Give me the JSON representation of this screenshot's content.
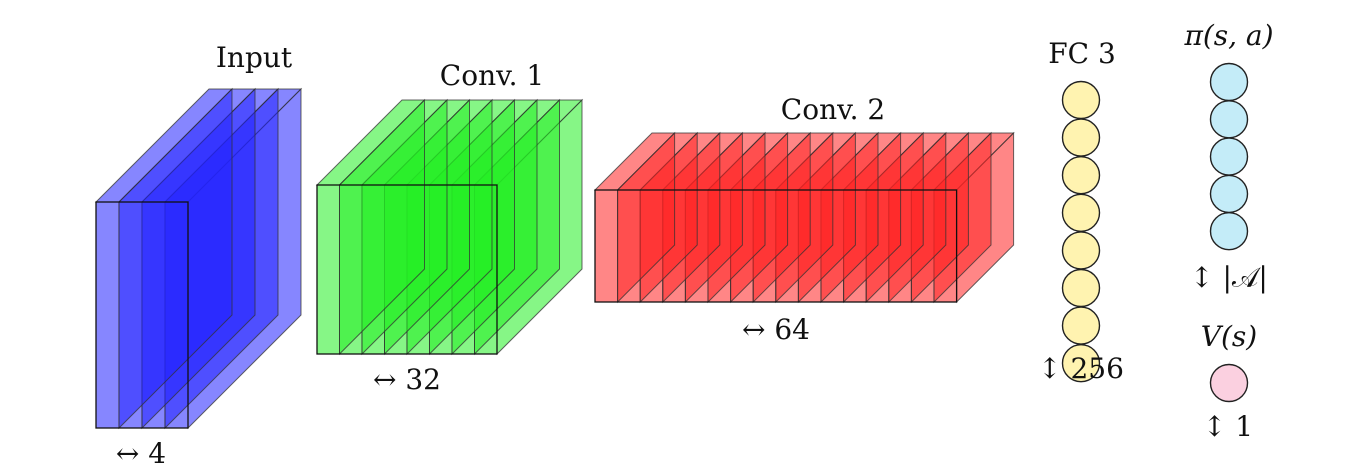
{
  "blocks": [
    {
      "id": "input",
      "label": "Input",
      "size_label": "↔ 4",
      "slices": 4,
      "color": "#2222ff"
    },
    {
      "id": "conv1",
      "label": "Conv. 1",
      "size_label": "↔ 32",
      "slices": 8,
      "color": "#22ee22"
    },
    {
      "id": "conv2",
      "label": "Conv. 2",
      "size_label": "↔ 64",
      "slices": 16,
      "color": "#ff2222"
    }
  ],
  "fc": {
    "label": "FC 3",
    "size_label": "↕ 256",
    "nodes": 8,
    "color": "#fff3b0"
  },
  "policy": {
    "label": "π(s, a)",
    "size_label": "↕ |𝒜|",
    "nodes": 5,
    "color": "#c4ecf8"
  },
  "value": {
    "label": "V(s)",
    "size_label": "↕ 1",
    "nodes": 1,
    "color": "#fbd0e0"
  }
}
